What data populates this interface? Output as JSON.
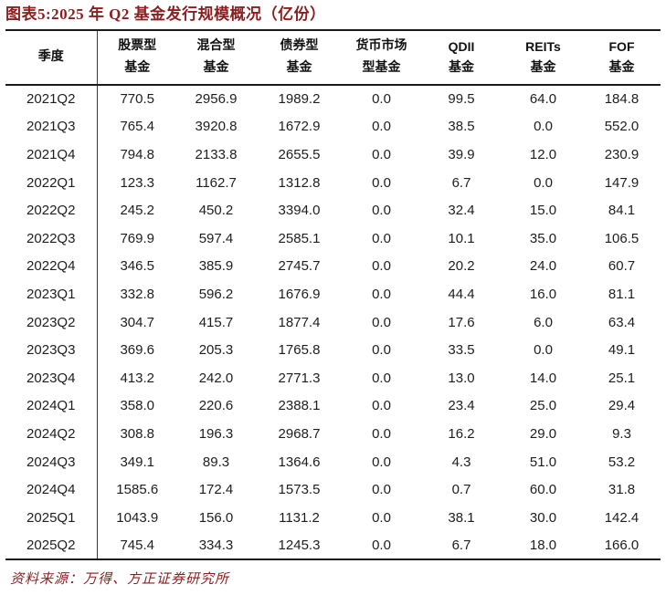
{
  "title": "图表5:2025 年 Q2 基金发行规模概况（亿份）",
  "source_note": "资料来源：万得、方正证券研究所",
  "colors": {
    "accent_dark_red": "#8b1e1e",
    "border_black": "#1a1a1a",
    "body_text": "#1d1d1d"
  },
  "chart_data": {
    "type": "table",
    "title": "图表5:2025 年 Q2 基金发行规模概况（亿份）",
    "unit_label": "亿份",
    "columns": [
      {
        "key": "quarter",
        "line1": "季度",
        "line2": "",
        "latin": false
      },
      {
        "key": "equity-fund",
        "line1": "股票型",
        "line2": "基金",
        "latin": false
      },
      {
        "key": "hybrid-fund",
        "line1": "混合型",
        "line2": "基金",
        "latin": false
      },
      {
        "key": "bond-fund",
        "line1": "债券型",
        "line2": "基金",
        "latin": false
      },
      {
        "key": "money-market-fund",
        "line1": "货币市场",
        "line2": "型基金",
        "latin": false
      },
      {
        "key": "qdii-fund",
        "line1": "QDII",
        "line2": "基金",
        "latin": true
      },
      {
        "key": "reits-fund",
        "line1": "REITs",
        "line2": "基金",
        "latin": true
      },
      {
        "key": "fof-fund",
        "line1": "FOF",
        "line2": "基金",
        "latin": true
      }
    ],
    "rows": [
      [
        "2021Q2",
        "770.5",
        "2956.9",
        "1989.2",
        "0.0",
        "99.5",
        "64.0",
        "184.8"
      ],
      [
        "2021Q3",
        "765.4",
        "3920.8",
        "1672.9",
        "0.0",
        "38.5",
        "0.0",
        "552.0"
      ],
      [
        "2021Q4",
        "794.8",
        "2133.8",
        "2655.5",
        "0.0",
        "39.9",
        "12.0",
        "230.9"
      ],
      [
        "2022Q1",
        "123.3",
        "1162.7",
        "1312.8",
        "0.0",
        "6.7",
        "0.0",
        "147.9"
      ],
      [
        "2022Q2",
        "245.2",
        "450.2",
        "3394.0",
        "0.0",
        "32.4",
        "15.0",
        "84.1"
      ],
      [
        "2022Q3",
        "769.9",
        "597.4",
        "2585.1",
        "0.0",
        "10.1",
        "35.0",
        "106.5"
      ],
      [
        "2022Q4",
        "346.5",
        "385.9",
        "2745.7",
        "0.0",
        "20.2",
        "24.0",
        "60.7"
      ],
      [
        "2023Q1",
        "332.8",
        "596.2",
        "1676.9",
        "0.0",
        "44.4",
        "16.0",
        "81.1"
      ],
      [
        "2023Q2",
        "304.7",
        "415.7",
        "1877.4",
        "0.0",
        "17.6",
        "6.0",
        "63.4"
      ],
      [
        "2023Q3",
        "369.6",
        "205.3",
        "1765.8",
        "0.0",
        "33.5",
        "0.0",
        "49.1"
      ],
      [
        "2023Q4",
        "413.2",
        "242.0",
        "2771.3",
        "0.0",
        "13.0",
        "14.0",
        "25.1"
      ],
      [
        "2024Q1",
        "358.0",
        "220.6",
        "2388.1",
        "0.0",
        "23.4",
        "25.0",
        "29.4"
      ],
      [
        "2024Q2",
        "308.8",
        "196.3",
        "2968.7",
        "0.0",
        "16.2",
        "29.0",
        "9.3"
      ],
      [
        "2024Q3",
        "349.1",
        "89.3",
        "1364.6",
        "0.0",
        "4.3",
        "51.0",
        "53.2"
      ],
      [
        "2024Q4",
        "1585.6",
        "172.4",
        "1573.5",
        "0.0",
        "0.7",
        "60.0",
        "31.8"
      ],
      [
        "2025Q1",
        "1043.9",
        "156.0",
        "1131.2",
        "0.0",
        "38.1",
        "30.0",
        "142.4"
      ],
      [
        "2025Q2",
        "745.4",
        "334.3",
        "1245.3",
        "0.0",
        "6.7",
        "18.0",
        "166.0"
      ]
    ]
  }
}
